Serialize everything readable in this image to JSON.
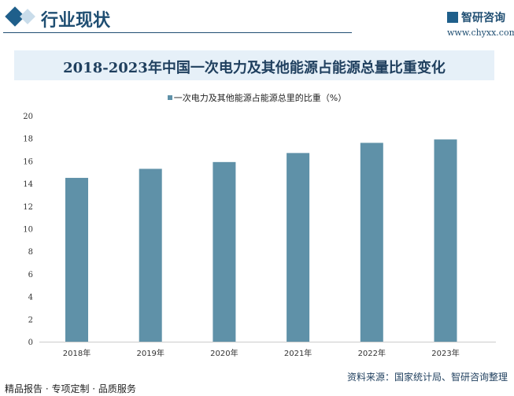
{
  "header": {
    "title": "行业现状",
    "logo_text": "智研咨询",
    "url": "www.chyxx.com"
  },
  "footer": {
    "tagline": "精品报告 · 专项定制 · 品质服务",
    "source": "资料来源：国家统计局、智研咨询整理"
  },
  "colors": {
    "bar": "#5f91a8",
    "header": "#1f4e72",
    "title_bg": "#e6f0f8"
  },
  "chart_data": {
    "type": "bar",
    "title": "2018-2023年中国一次电力及其他能源占能源总量比重变化",
    "categories": [
      "2018年",
      "2019年",
      "2020年",
      "2021年",
      "2022年",
      "2023年"
    ],
    "series": [
      {
        "name": "一次电力及其他能源占能源总里的比重（%）",
        "values": [
          14.5,
          15.3,
          15.9,
          16.7,
          17.6,
          17.9
        ]
      }
    ],
    "ylim": [
      0,
      20
    ],
    "yticks": [
      "0",
      "2",
      "4",
      "6",
      "8",
      "10",
      "12",
      "14",
      "16",
      "18",
      "20"
    ],
    "legend": "top-center",
    "grid": false
  }
}
